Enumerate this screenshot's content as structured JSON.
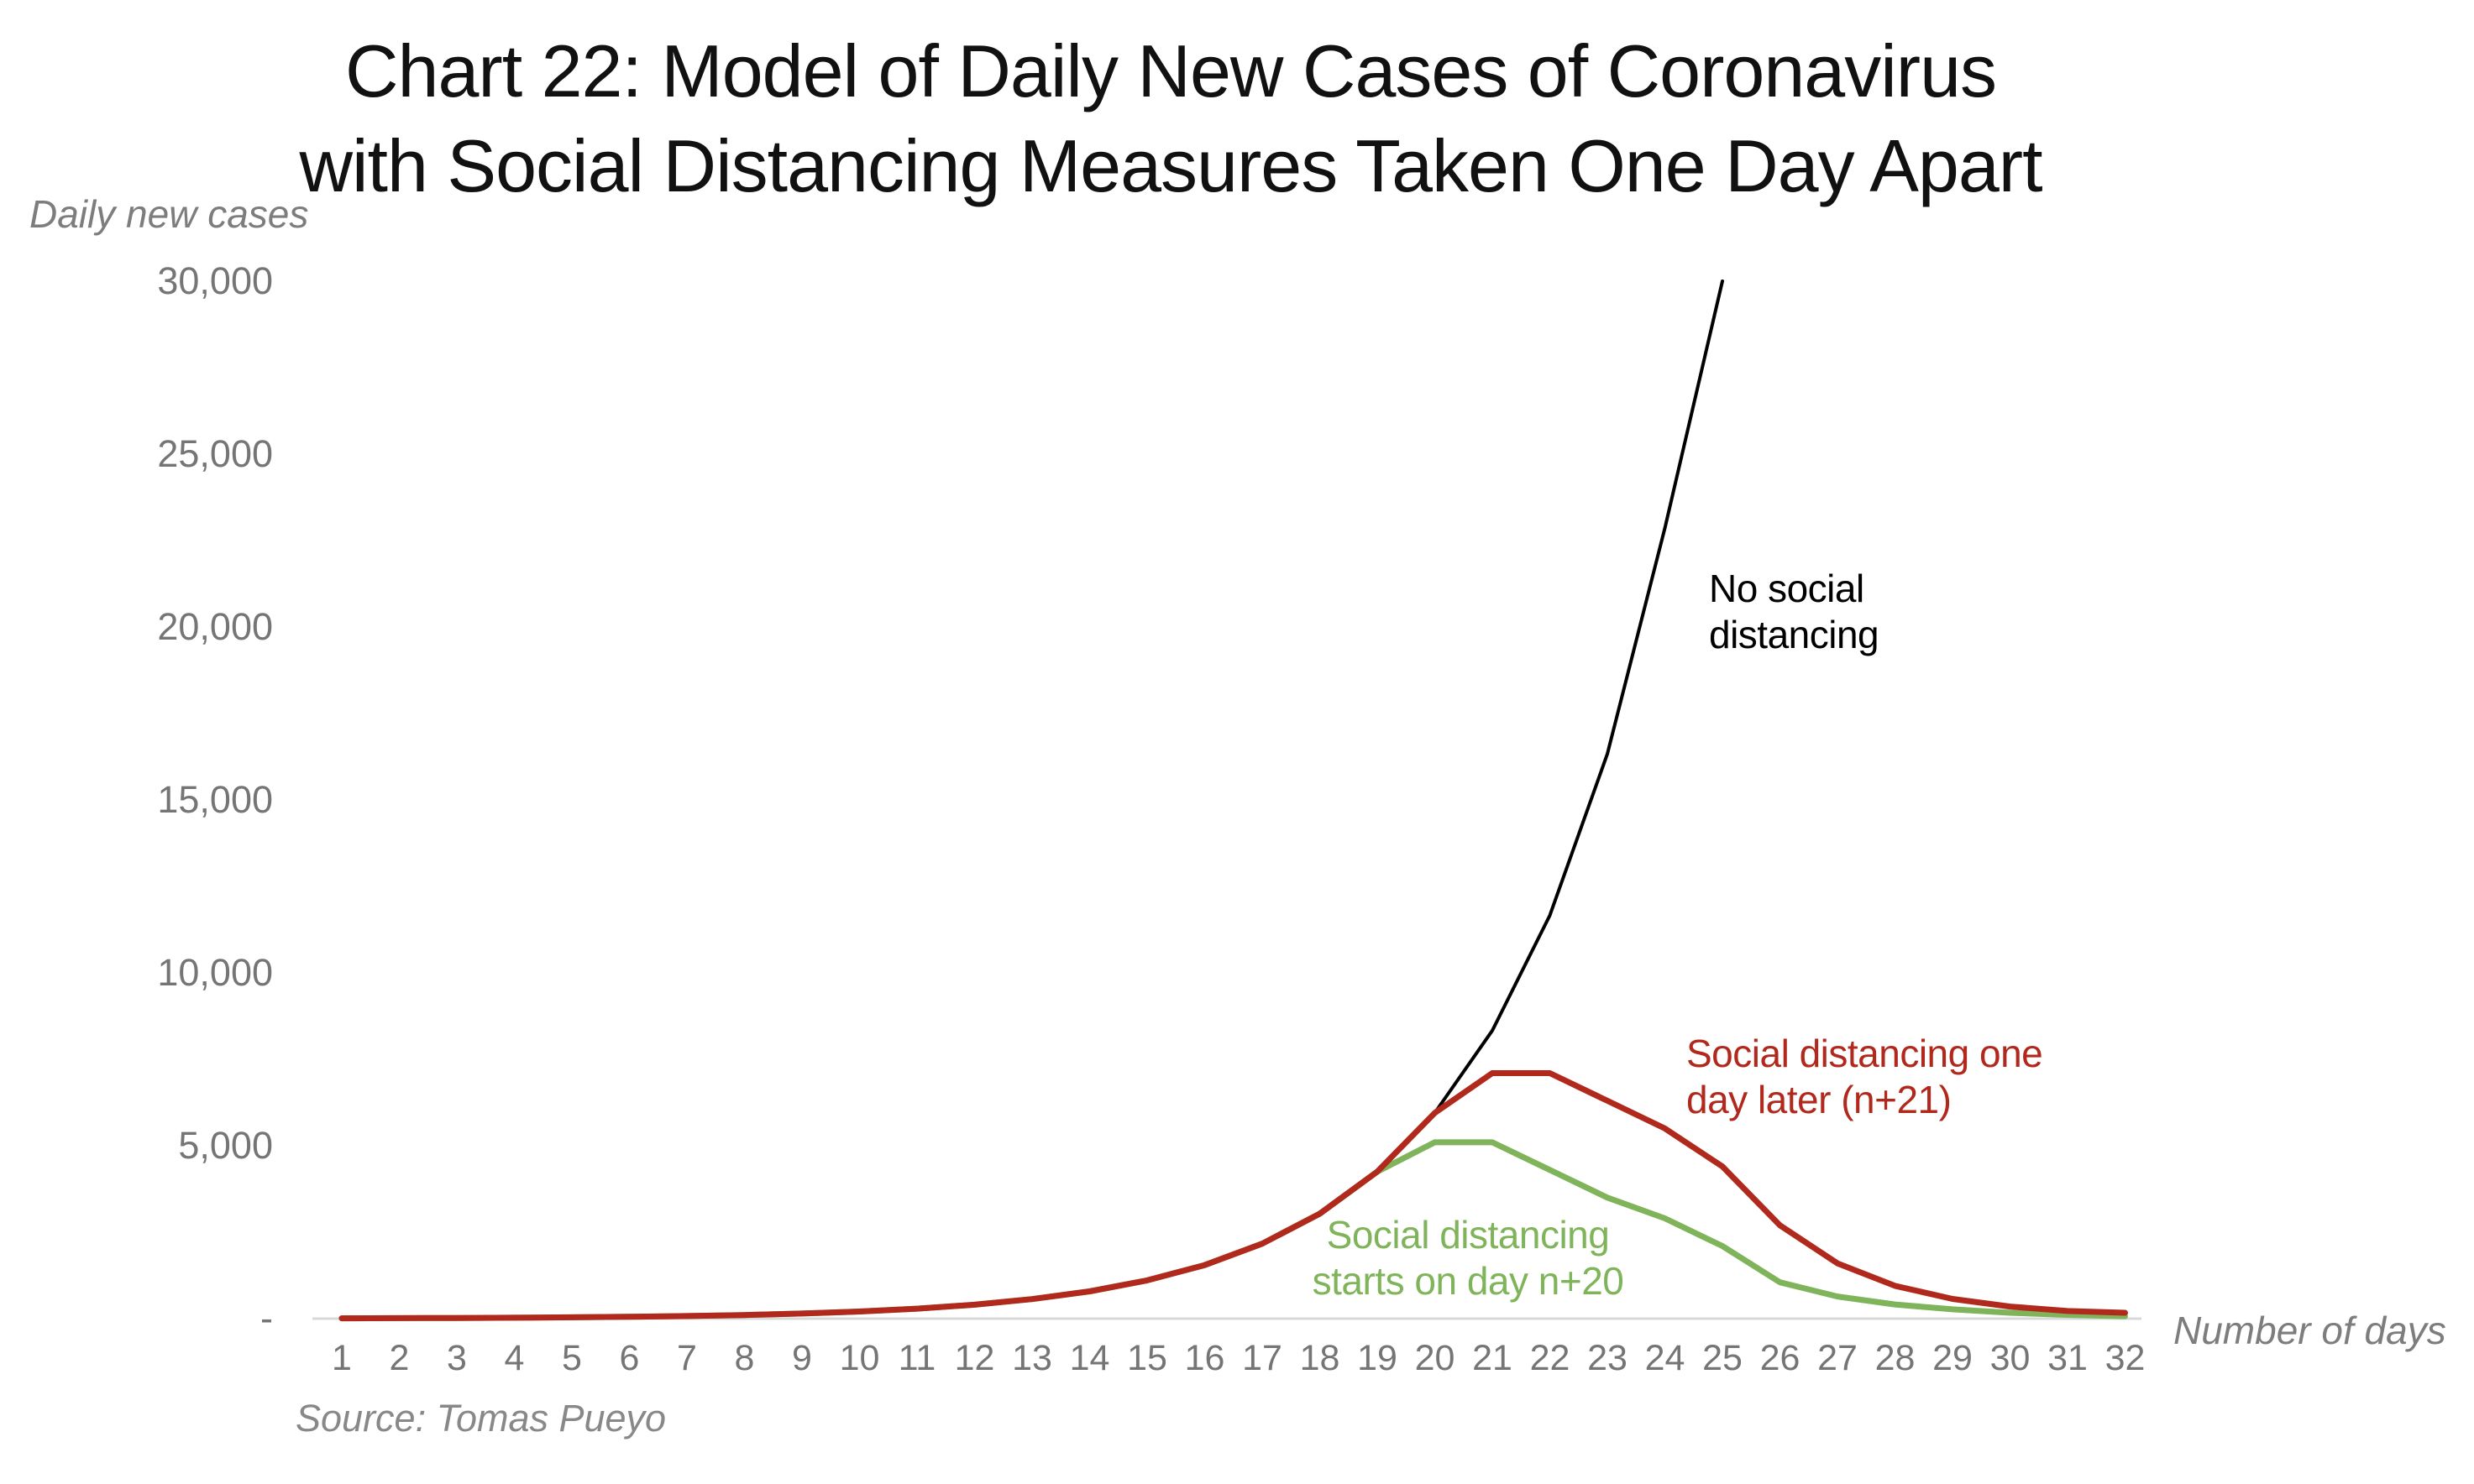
{
  "title": {
    "line1": "Chart 22: Model of Daily New Cases of Coronavirus",
    "line2": "with Social Distancing Measures Taken One Day Apart"
  },
  "source": "Source: Tomas Pueyo",
  "y_axis": {
    "label": "Daily new cases",
    "ticks": [
      {
        "value": 30000,
        "label": "30,000"
      },
      {
        "value": 25000,
        "label": "25,000"
      },
      {
        "value": 20000,
        "label": "20,000"
      },
      {
        "value": 15000,
        "label": "15,000"
      },
      {
        "value": 10000,
        "label": "10,000"
      },
      {
        "value": 5000,
        "label": "5,000"
      },
      {
        "value": 0,
        "label": "-"
      }
    ]
  },
  "x_axis": {
    "label": "Number of days"
  },
  "annotations": [
    {
      "name": "no-social-distancing",
      "lines": [
        "No social",
        "distancing"
      ],
      "color": "#000000"
    },
    {
      "name": "one-day-later",
      "lines": [
        "Social distancing one",
        "day later (n+21)"
      ],
      "color": "#B0291C"
    },
    {
      "name": "starts-day-n20",
      "lines": [
        "Social distancing",
        "starts on day n+20"
      ],
      "color": "#7FB45A"
    }
  ],
  "chart_data": {
    "type": "line",
    "title": "Chart 22: Model of Daily New Cases of Coronavirus with Social Distancing Measures Taken One Day Apart",
    "xlabel": "Number of days",
    "ylabel": "Daily new cases",
    "xlim": [
      1,
      32
    ],
    "ylim": [
      0,
      30000
    ],
    "grid": false,
    "legend": "inline-annotations",
    "background": "#FFFFFF",
    "axis_line_color": "#D8D8D8",
    "tick_text_color": "#757575",
    "x": [
      1,
      2,
      3,
      4,
      5,
      6,
      7,
      8,
      9,
      10,
      11,
      12,
      13,
      14,
      15,
      16,
      17,
      18,
      19,
      20,
      21,
      22,
      23,
      24,
      25,
      26,
      27,
      28,
      29,
      30,
      31,
      32
    ],
    "series": [
      {
        "name": "No social distancing",
        "color": "#000000",
        "stroke_width": 4,
        "values": [
          10,
          14,
          19,
          27,
          38,
          54,
          75,
          105,
          147,
          206,
          288,
          403,
          565,
          790,
          1106,
          1549,
          2168,
          3035,
          4249,
          5950,
          8330,
          11660,
          16330,
          22860,
          30000
        ]
      },
      {
        "name": "Social distancing starts on day n+20",
        "color": "#7FB45A",
        "stroke_width": 7,
        "values": [
          10,
          14,
          19,
          27,
          38,
          54,
          75,
          105,
          147,
          206,
          288,
          403,
          565,
          790,
          1106,
          1549,
          2168,
          3035,
          4249,
          5100,
          5100,
          4300,
          3500,
          2900,
          2100,
          1050,
          640,
          410,
          270,
          170,
          110,
          70
        ]
      },
      {
        "name": "Social distancing one day later (n+21)",
        "color": "#B0291C",
        "stroke_width": 7,
        "values": [
          10,
          14,
          19,
          27,
          38,
          54,
          75,
          105,
          147,
          206,
          288,
          403,
          565,
          790,
          1106,
          1549,
          2168,
          3035,
          4249,
          5950,
          7100,
          7100,
          6300,
          5500,
          4400,
          2700,
          1600,
          950,
          570,
          350,
          220,
          170
        ]
      }
    ]
  }
}
